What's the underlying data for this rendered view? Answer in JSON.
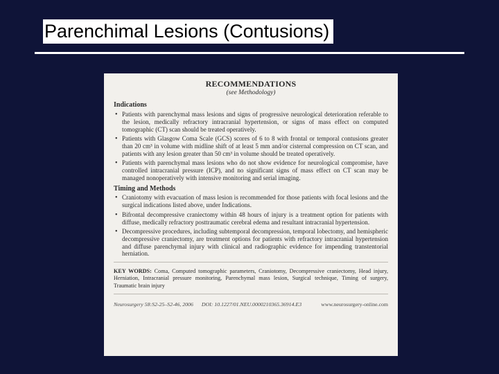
{
  "slide": {
    "title": "Parenchimal Lesions (Contusions)",
    "background_color": "#0f1438",
    "title_bg": "#ffffff",
    "title_color": "#000000",
    "rule_color": "#ffffff"
  },
  "scan": {
    "background_color": "#f2f0ec",
    "text_color": "#2a2a2a",
    "header": "RECOMMENDATIONS",
    "subheader": "(see Methodology)",
    "sections": {
      "indications": {
        "heading": "Indications",
        "items": [
          "Patients with parenchymal mass lesions and signs of progressive neurological deterioration referable to the lesion, medically refractory intracranial hypertension, or signs of mass effect on computed tomographic (CT) scan should be treated operatively.",
          "Patients with Glasgow Coma Scale (GCS) scores of 6 to 8 with frontal or temporal contusions greater than 20 cm³ in volume with midline shift of at least 5 mm and/or cisternal compression on CT scan, and patients with any lesion greater than 50 cm³ in volume should be treated operatively.",
          "Patients with parenchymal mass lesions who do not show evidence for neurological compromise, have controlled intracranial pressure (ICP), and no significant signs of mass effect on CT scan may be managed nonoperatively with intensive monitoring and serial imaging."
        ]
      },
      "timing": {
        "heading": "Timing and Methods",
        "items": [
          "Craniotomy with evacuation of mass lesion is recommended for those patients with focal lesions and the surgical indications listed above, under Indications.",
          "Bifrontal decompressive craniectomy within 48 hours of injury is a treatment option for patients with diffuse, medically refractory posttraumatic cerebral edema and resultant intracranial hypertension.",
          "Decompressive procedures, including subtemporal decompression, temporal lobectomy, and hemispheric decompressive craniectomy, are treatment options for patients with refractory intracranial hypertension and diffuse parenchymal injury with clinical and radiographic evidence for impending transtentorial herniation."
        ]
      }
    },
    "keywords_label": "KEY WORDS:",
    "keywords": "Coma, Computed tomographic parameters, Craniotomy, Decompressive craniectomy, Head injury, Herniation, Intracranial pressure monitoring, Parenchymal mass lesion, Surgical technique, Timing of surgery, Traumatic brain injury",
    "footer": {
      "citation": "Neurosurgery 58:S2-25–S2-46, 2006",
      "doi": "DOI: 10.1227/01.NEU.0000210365.36914.E3",
      "url": "www.neurosurgery-online.com"
    }
  }
}
